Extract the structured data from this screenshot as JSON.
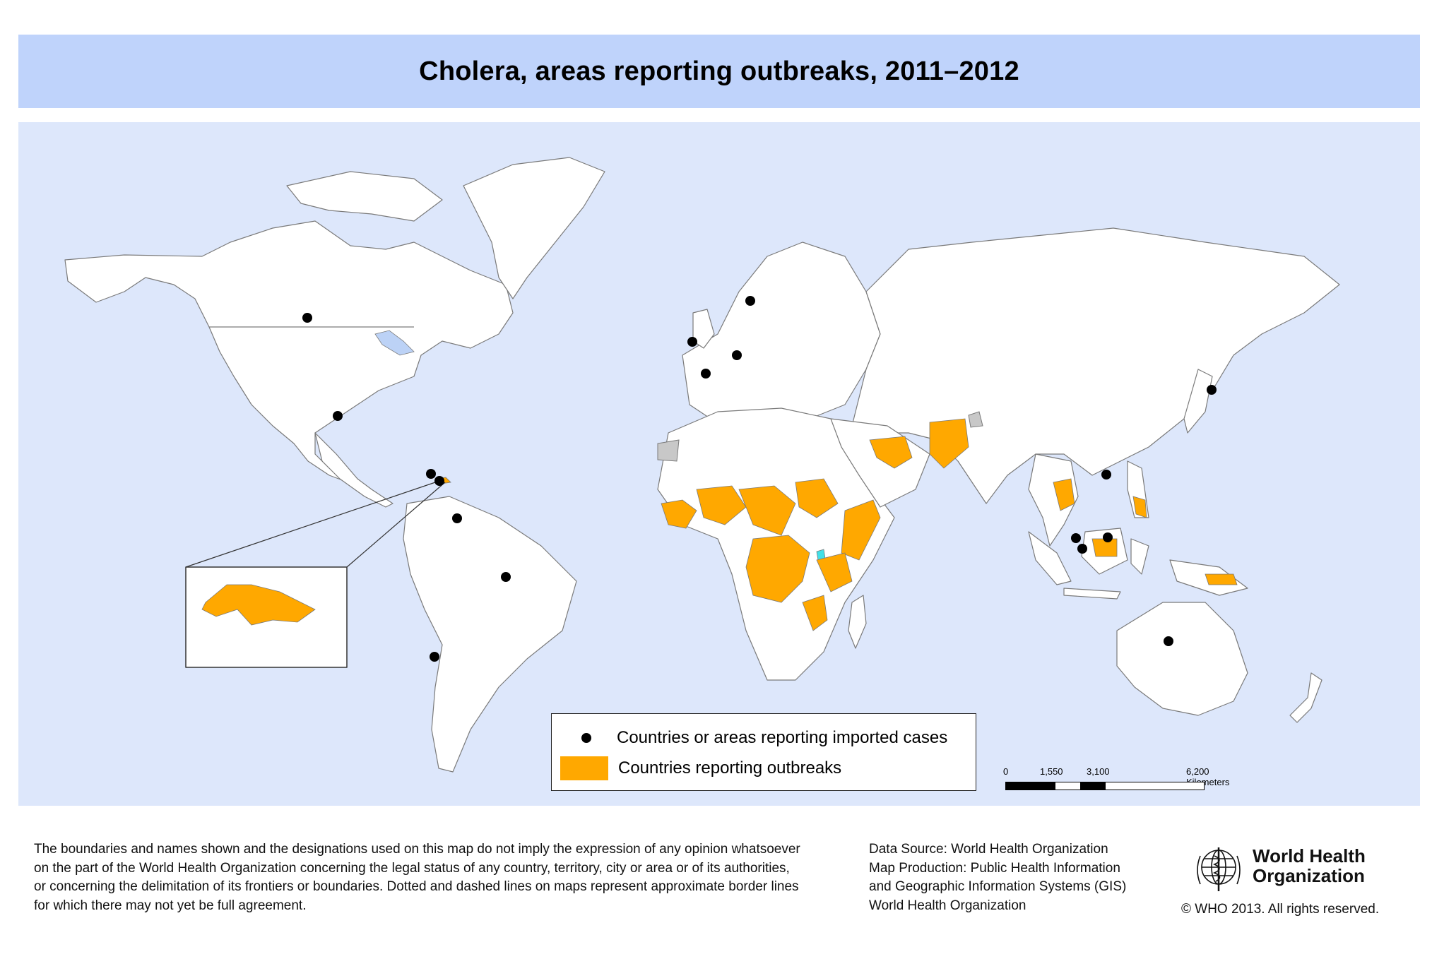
{
  "title": "Cholera, areas reporting outbreaks, 2011–2012",
  "colors": {
    "ocean": "#dde7fb",
    "title_band": "#bfd3fb",
    "land": "#ffffff",
    "border": "#7a7a7a",
    "outbreak": "#ffa800",
    "imported": "#000000",
    "disputed": "#c8c8c8",
    "lake": "#bcd2f6"
  },
  "legend": {
    "imported_label": "Countries or areas reporting imported cases",
    "outbreak_label": "Countries reporting outbreaks"
  },
  "scale_bar": {
    "ticks": [
      "0",
      "1,550",
      "3,100",
      "6,200 Kilometers"
    ]
  },
  "disclaimer": [
    "The boundaries and names shown and the designations used on this map do not imply the expression of any opinion whatsoever",
    "on the part of the World Health Organization concerning the legal status of any country, territory, city or area or of its authorities,",
    "or concerning the delimitation of its frontiers or boundaries. Dotted and dashed lines on maps represent approximate border lines",
    "for which there may not yet be full agreement."
  ],
  "source": [
    "Data Source: World Health Organization",
    "Map Production: Public Health Information",
    "and Geographic Information Systems (GIS)",
    "World Health Organization"
  ],
  "who": {
    "name_line1": "World Health",
    "name_line2": "Organization",
    "copyright": "© WHO 2013. All rights reserved."
  },
  "imported_case_markers": [
    "Canada",
    "United States of America",
    "Cuba",
    "Dominican Republic",
    "Venezuela",
    "Brazil",
    "Chile",
    "United Kingdom",
    "France",
    "Germany",
    "Sweden",
    "Japan",
    "China (Hong Kong SAR)",
    "Malaysia",
    "Singapore",
    "Indonesia",
    "Australia"
  ],
  "outbreak_regions": [
    "Haiti",
    "Dominican Republic",
    "West Africa",
    "Lake Chad Basin",
    "Sudan / South Sudan",
    "Somalia",
    "Democratic Republic of the Congo",
    "East Africa",
    "Mozambique",
    "Iran",
    "Afghanistan / Pakistan",
    "Thailand / Cambodia",
    "Philippines",
    "Borneo",
    "Papua New Guinea"
  ]
}
